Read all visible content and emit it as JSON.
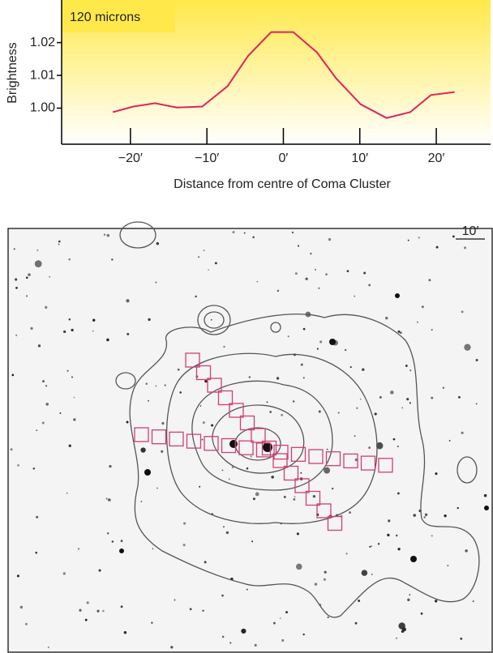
{
  "chart_data": {
    "type": "line",
    "annotation": "120 microns",
    "ylabel": "Brightness",
    "xlabel": "Distance from centre of Coma Cluster",
    "x": [
      -22.3,
      -19.6,
      -16.8,
      -13.9,
      -10.6,
      -7.3,
      -4.6,
      -1.6,
      1.3,
      4.4,
      6.9,
      10.1,
      13.5,
      16.6,
      19.3,
      22.4
    ],
    "series": [
      {
        "name": "120 microns",
        "color": "#e0245e",
        "values": [
          0.9988,
          1.0005,
          1.0015,
          1.0002,
          1.0005,
          1.0067,
          1.016,
          1.0232,
          1.0232,
          1.017,
          1.0091,
          1.0012,
          0.997,
          0.9988,
          1.004,
          1.0049
        ]
      }
    ],
    "xlim": [
      -29,
      27.1
    ],
    "ylim": [
      0.989,
      1.033
    ],
    "xticks": [
      {
        "value": -20,
        "label": "−20′"
      },
      {
        "value": -10,
        "label": "−10′"
      },
      {
        "value": 0,
        "label": "0′"
      },
      {
        "value": 10,
        "label": "10′"
      },
      {
        "value": 20,
        "label": "20′"
      }
    ],
    "yticks": [
      {
        "value": 1.0,
        "label": "1.00"
      },
      {
        "value": 1.01,
        "label": "1.01"
      },
      {
        "value": 1.02,
        "label": "1.02"
      }
    ],
    "grid": false
  },
  "image": {
    "scale_label": "10′"
  }
}
